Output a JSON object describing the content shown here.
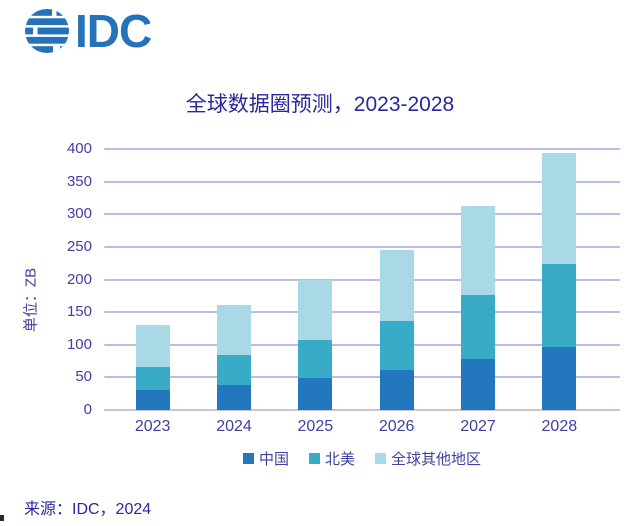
{
  "logo": {
    "text": "IDC",
    "icon": "globe-stripes"
  },
  "source_note": "来源：IDC，2024",
  "colors": {
    "logo_blue": "#2472b9",
    "title_text": "#28289e",
    "axis_text": "#40409e",
    "gridline": "#bcbbe6",
    "baseline": "#c6c6d8"
  },
  "chart_data": {
    "type": "bar",
    "stacked": true,
    "title": "全球数据圈预测，2023-2028",
    "ylabel": "单位：ZB",
    "xlabel": "",
    "ylim": [
      0,
      400
    ],
    "ytick_step": 50,
    "grid": true,
    "legend_position": "bottom",
    "categories": [
      "2023",
      "2024",
      "2025",
      "2026",
      "2027",
      "2028"
    ],
    "series": [
      {
        "name": "中国",
        "color": "#2277bd",
        "values": [
          30,
          38,
          49,
          61,
          78,
          97
        ]
      },
      {
        "name": "北美",
        "color": "#38acc6",
        "values": [
          36,
          47,
          58,
          75,
          99,
          127
        ]
      },
      {
        "name": "全球其他地区",
        "color": "#a9d8e6",
        "values": [
          64,
          76,
          93,
          110,
          135,
          170
        ]
      }
    ],
    "totals": [
      130,
      161,
      200,
      246,
      312,
      394
    ]
  }
}
